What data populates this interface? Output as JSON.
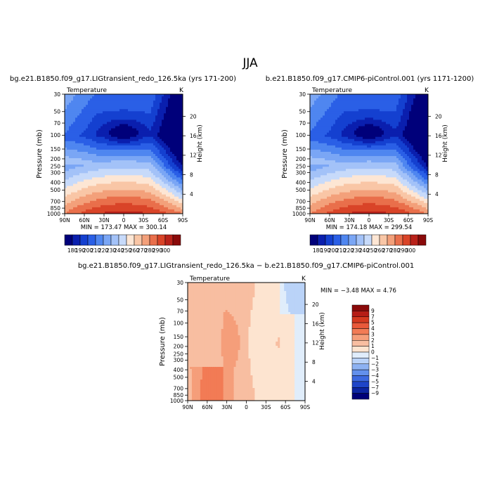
{
  "figure": {
    "title": "JJA"
  },
  "chart_data": [
    {
      "id": "left",
      "type": "heatmap",
      "title": "bg.e21.B1850.f09_g17.LIGtransient_redo_126.5ka (yrs 171-200)",
      "variable_label": "Temperature",
      "units": "K",
      "xlabel": "",
      "ylabel": "Pressure (mb)",
      "y2label": "Height (km)",
      "x_ticks": [
        "90N",
        "60N",
        "30N",
        "0",
        "30S",
        "60S",
        "90S"
      ],
      "y_ticks": [
        30,
        50,
        70,
        100,
        150,
        200,
        250,
        300,
        400,
        500,
        700,
        850,
        1000
      ],
      "y_tick_labels": [
        "30",
        "50",
        "70",
        "100",
        "150",
        "200",
        "250",
        "300",
        "400",
        "500",
        "700",
        "850",
        "1000"
      ],
      "y2_ticks": [
        4,
        8,
        12,
        16,
        20
      ],
      "y2_tick_labels": [
        "4",
        "8",
        "12",
        "16",
        "20"
      ],
      "stats_text": "MIN = 173.47   MAX = 300.14",
      "min": 173.47,
      "max": 300.14,
      "colorbar": {
        "orientation": "horizontal",
        "labels": [
          "180",
          "190",
          "200",
          "210",
          "220",
          "230",
          "240",
          "250",
          "260",
          "270",
          "280",
          "290",
          "300"
        ],
        "colors": [
          "#00007a",
          "#0a1fae",
          "#1440d0",
          "#2a5fe6",
          "#4f86f0",
          "#7aa6f5",
          "#a3c2f8",
          "#c7dafa",
          "#fde6d4",
          "#f9c6a6",
          "#f3a07a",
          "#e96f4b",
          "#d94428",
          "#b9221a",
          "#8a0a0a"
        ]
      }
    },
    {
      "id": "right",
      "type": "heatmap",
      "title": "b.e21.B1850.f09_g17.CMIP6-piControl.001 (yrs 1171-1200)",
      "variable_label": "Temperature",
      "units": "K",
      "xlabel": "",
      "ylabel": "Pressure (mb)",
      "y2label": "Height (km)",
      "x_ticks": [
        "90N",
        "60N",
        "30N",
        "0",
        "30S",
        "60S",
        "90S"
      ],
      "y_ticks": [
        30,
        50,
        70,
        100,
        150,
        200,
        250,
        300,
        400,
        500,
        700,
        850,
        1000
      ],
      "y_tick_labels": [
        "30",
        "50",
        "70",
        "100",
        "150",
        "200",
        "250",
        "300",
        "400",
        "500",
        "700",
        "850",
        "1000"
      ],
      "y2_ticks": [
        4,
        8,
        12,
        16,
        20
      ],
      "y2_tick_labels": [
        "4",
        "8",
        "12",
        "16",
        "20"
      ],
      "stats_text": "MIN = 174.18   MAX = 299.54",
      "min": 174.18,
      "max": 299.54,
      "colorbar": {
        "orientation": "horizontal",
        "labels": [
          "180",
          "190",
          "200",
          "210",
          "220",
          "230",
          "240",
          "250",
          "260",
          "270",
          "280",
          "290",
          "300"
        ],
        "colors": [
          "#00007a",
          "#0a1fae",
          "#1440d0",
          "#2a5fe6",
          "#4f86f0",
          "#7aa6f5",
          "#a3c2f8",
          "#c7dafa",
          "#fde6d4",
          "#f9c6a6",
          "#f3a07a",
          "#e96f4b",
          "#d94428",
          "#b9221a",
          "#8a0a0a"
        ]
      }
    },
    {
      "id": "diff",
      "type": "heatmap",
      "title": "bg.e21.B1850.f09_g17.LIGtransient_redo_126.5ka − b.e21.B1850.f09_g17.CMIP6-piControl.001",
      "variable_label": "Temperature",
      "units": "K",
      "xlabel": "",
      "ylabel": "Pressure (mb)",
      "y2label": "Height (km)",
      "x_ticks": [
        "90N",
        "60N",
        "30N",
        "0",
        "30S",
        "60S",
        "90S"
      ],
      "y_ticks": [
        30,
        50,
        70,
        100,
        150,
        200,
        250,
        300,
        400,
        500,
        700,
        850,
        1000
      ],
      "y_tick_labels": [
        "30",
        "50",
        "70",
        "100",
        "150",
        "200",
        "250",
        "300",
        "400",
        "500",
        "700",
        "850",
        "1000"
      ],
      "y2_ticks": [
        4,
        8,
        12,
        16,
        20
      ],
      "y2_tick_labels": [
        "4",
        "8",
        "12",
        "16",
        "20"
      ],
      "stats_text": "MIN =  −3.48   MAX =   4.76",
      "min": -3.48,
      "max": 4.76,
      "colorbar": {
        "orientation": "vertical",
        "labels": [
          "9",
          "7",
          "5",
          "4",
          "3",
          "2",
          "1",
          "0",
          "−1",
          "−2",
          "−3",
          "−4",
          "−5",
          "−7",
          "−9"
        ],
        "colors": [
          "#8a0a0a",
          "#b51d16",
          "#d4391f",
          "#e9593a",
          "#f27b55",
          "#f59e7a",
          "#f8bea1",
          "#fde4d0",
          "#e0edfb",
          "#bad3f8",
          "#8db2f2",
          "#6390ec",
          "#3d69e0",
          "#1f45c8",
          "#0d25a2",
          "#000078"
        ]
      }
    }
  ]
}
